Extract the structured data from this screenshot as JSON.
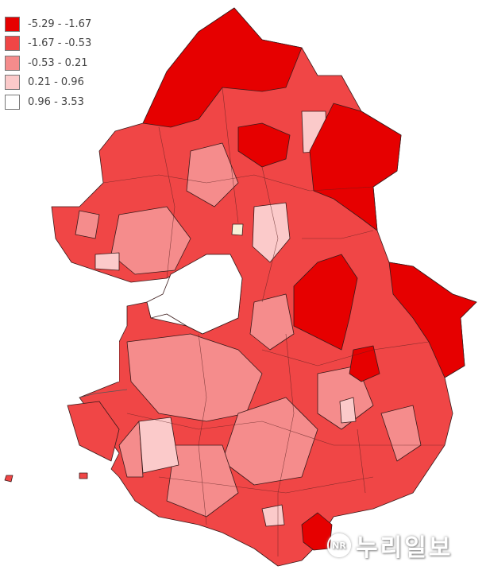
{
  "legend": {
    "items": [
      {
        "label": "-5.29 - -1.67",
        "color": "#e60000"
      },
      {
        "label": "-1.67 - -0.53",
        "color": "#f04646"
      },
      {
        "label": "-0.53 - 0.21",
        "color": "#f58c8c"
      },
      {
        "label": "0.21 - 0.96",
        "color": "#fbcaca"
      },
      {
        "label": "0.96 - 3.53",
        "color": "#ffffff"
      }
    ]
  },
  "watermark": {
    "logo": "NR",
    "text": "누리일보"
  }
}
